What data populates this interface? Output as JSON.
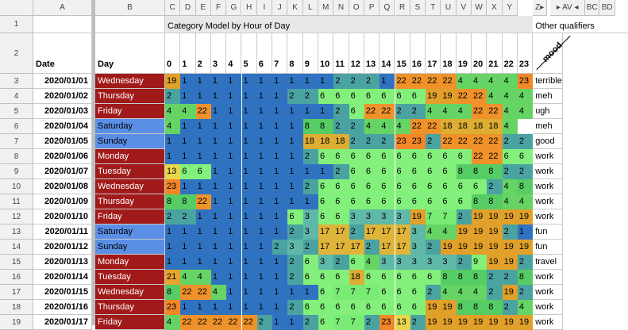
{
  "column_letters": [
    "A",
    "B",
    "C",
    "D",
    "E",
    "F",
    "G",
    "H",
    "I",
    "J",
    "K",
    "L",
    "M",
    "N",
    "O",
    "P",
    "Q",
    "R",
    "S",
    "T",
    "U",
    "V",
    "W",
    "X",
    "Y",
    "Z▸",
    "▸ AV ◂",
    "BC",
    "BD"
  ],
  "row1": {
    "row_number": "1",
    "title": "Category Model by Hour of Day",
    "other": "Other qualifiers"
  },
  "row2": {
    "row_number": "2",
    "date_header": "Date",
    "day_header": "Day",
    "hours": [
      "0",
      "1",
      "2",
      "3",
      "4",
      "5",
      "6",
      "7",
      "8",
      "9",
      "10",
      "11",
      "12",
      "13",
      "14",
      "15",
      "16",
      "17",
      "18",
      "19",
      "20",
      "21",
      "22",
      "23"
    ],
    "mood_header": "mood"
  },
  "colors": {
    "1": "#2f73c0",
    "2": "#4aa3a1",
    "3": "#5fb8a8",
    "4": "#66d464",
    "6": "#82f07a",
    "7": "#7aec76",
    "8": "#56cc64",
    "13": "#ead64c",
    "17": "#dfb43a",
    "18": "#dcae34",
    "19": "#e0a02a",
    "21": "#e6a52c",
    "22": "#ef922a",
    "23": "#f28728",
    "weekday": "#a11a1a",
    "weekend": "#5b8fe6"
  },
  "rows": [
    {
      "row": "3",
      "date": "2020/01/01",
      "day": "Wednesday",
      "weekend": false,
      "hours": [
        "19",
        "1",
        "1",
        "1",
        "1",
        "1",
        "1",
        "1",
        "1",
        "1",
        "1",
        "2",
        "2",
        "2",
        "1",
        "22",
        "22",
        "22",
        "22",
        "4",
        "4",
        "4",
        "4",
        "23"
      ],
      "mood": "terrible"
    },
    {
      "row": "4",
      "date": "2020/01/02",
      "day": "Thursday",
      "weekend": false,
      "hours": [
        "2",
        "1",
        "1",
        "1",
        "1",
        "1",
        "1",
        "1",
        "2",
        "2",
        "6",
        "6",
        "6",
        "6",
        "6",
        "6",
        "6",
        "19",
        "19",
        "22",
        "22",
        "4",
        "4",
        "4"
      ],
      "mood": "meh"
    },
    {
      "row": "5",
      "date": "2020/01/03",
      "day": "Friday",
      "weekend": false,
      "hours": [
        "4",
        "4",
        "22",
        "1",
        "1",
        "1",
        "1",
        "1",
        "1",
        "1",
        "1",
        "2",
        "6",
        "22",
        "22",
        "2",
        "2",
        "4",
        "4",
        "4",
        "22",
        "22",
        "4",
        "4"
      ],
      "mood": "ugh"
    },
    {
      "row": "6",
      "date": "2020/01/04",
      "day": "Saturday",
      "weekend": true,
      "hours": [
        "4",
        "1",
        "1",
        "1",
        "1",
        "1",
        "1",
        "1",
        "1",
        "8",
        "8",
        "2",
        "2",
        "4",
        "4",
        "4",
        "22",
        "22",
        "18",
        "18",
        "18",
        "18",
        "4",
        ""
      ],
      "mood": "meh"
    },
    {
      "row": "7",
      "date": "2020/01/05",
      "day": "Sunday",
      "weekend": true,
      "hours": [
        "1",
        "1",
        "1",
        "1",
        "1",
        "1",
        "1",
        "1",
        "1",
        "18",
        "18",
        "18",
        "2",
        "2",
        "2",
        "23",
        "23",
        "2",
        "22",
        "22",
        "22",
        "22",
        "2",
        "2"
      ],
      "mood": "good"
    },
    {
      "row": "8",
      "date": "2020/01/06",
      "day": "Monday",
      "weekend": false,
      "hours": [
        "1",
        "1",
        "1",
        "1",
        "1",
        "1",
        "1",
        "1",
        "1",
        "2",
        "6",
        "6",
        "6",
        "6",
        "6",
        "6",
        "6",
        "6",
        "6",
        "6",
        "22",
        "22",
        "6",
        "6"
      ],
      "mood": "work"
    },
    {
      "row": "9",
      "date": "2020/01/07",
      "day": "Tuesday",
      "weekend": false,
      "hours": [
        "13",
        "6",
        "6",
        "1",
        "1",
        "1",
        "1",
        "1",
        "1",
        "1",
        "1",
        "2",
        "6",
        "6",
        "6",
        "6",
        "6",
        "6",
        "6",
        "8",
        "8",
        "8",
        "2",
        "2"
      ],
      "mood": "work"
    },
    {
      "row": "10",
      "date": "2020/01/08",
      "day": "Wednesday",
      "weekend": false,
      "hours": [
        "23",
        "1",
        "1",
        "1",
        "1",
        "1",
        "1",
        "1",
        "1",
        "2",
        "6",
        "6",
        "6",
        "6",
        "6",
        "6",
        "6",
        "6",
        "6",
        "6",
        "6",
        "2",
        "4",
        "8"
      ],
      "mood": "work"
    },
    {
      "row": "11",
      "date": "2020/01/09",
      "day": "Thursday",
      "weekend": false,
      "hours": [
        "8",
        "8",
        "22",
        "1",
        "1",
        "1",
        "1",
        "1",
        "1",
        "1",
        "6",
        "6",
        "6",
        "6",
        "6",
        "6",
        "6",
        "6",
        "6",
        "6",
        "8",
        "8",
        "4",
        "4"
      ],
      "mood": "work"
    },
    {
      "row": "12",
      "date": "2020/01/10",
      "day": "Friday",
      "weekend": false,
      "hours": [
        "2",
        "2",
        "1",
        "1",
        "1",
        "1",
        "1",
        "1",
        "6",
        "3",
        "6",
        "6",
        "3",
        "3",
        "3",
        "3",
        "19",
        "7",
        "7",
        "2",
        "19",
        "19",
        "19",
        "19"
      ],
      "mood": "work"
    },
    {
      "row": "13",
      "date": "2020/01/11",
      "day": "Saturday",
      "weekend": true,
      "hours": [
        "1",
        "1",
        "1",
        "1",
        "1",
        "1",
        "1",
        "1",
        "2",
        "3",
        "17",
        "17",
        "2",
        "17",
        "17",
        "17",
        "3",
        "4",
        "4",
        "19",
        "19",
        "19",
        "2",
        "1"
      ],
      "mood": "fun"
    },
    {
      "row": "14",
      "date": "2020/01/12",
      "day": "Sunday",
      "weekend": true,
      "hours": [
        "1",
        "1",
        "1",
        "1",
        "1",
        "1",
        "1",
        "2",
        "3",
        "2",
        "17",
        "17",
        "17",
        "2",
        "17",
        "17",
        "3",
        "2",
        "19",
        "19",
        "19",
        "19",
        "19",
        "19"
      ],
      "mood": "fun"
    },
    {
      "row": "15",
      "date": "2020/01/13",
      "day": "Monday",
      "weekend": false,
      "hours": [
        "1",
        "1",
        "1",
        "1",
        "1",
        "1",
        "1",
        "1",
        "2",
        "6",
        "3",
        "2",
        "6",
        "4",
        "3",
        "3",
        "3",
        "3",
        "3",
        "2",
        "9",
        "19",
        "19",
        "2"
      ],
      "mood": "travel"
    },
    {
      "row": "16",
      "date": "2020/01/14",
      "day": "Tuesday",
      "weekend": false,
      "hours": [
        "21",
        "4",
        "4",
        "1",
        "1",
        "1",
        "1",
        "1",
        "2",
        "6",
        "6",
        "6",
        "18",
        "6",
        "6",
        "6",
        "6",
        "6",
        "8",
        "8",
        "8",
        "2",
        "2",
        "8"
      ],
      "mood": "work"
    },
    {
      "row": "17",
      "date": "2020/01/15",
      "day": "Wednesday",
      "weekend": false,
      "hours": [
        "8",
        "22",
        "22",
        "4",
        "1",
        "1",
        "1",
        "1",
        "1",
        "1",
        "6",
        "7",
        "7",
        "7",
        "6",
        "6",
        "6",
        "2",
        "4",
        "4",
        "4",
        "2",
        "19",
        "2"
      ],
      "mood": "work"
    },
    {
      "row": "18",
      "date": "2020/01/16",
      "day": "Thursday",
      "weekend": false,
      "hours": [
        "23",
        "1",
        "1",
        "1",
        "1",
        "1",
        "1",
        "1",
        "2",
        "6",
        "6",
        "6",
        "6",
        "6",
        "6",
        "6",
        "6",
        "19",
        "19",
        "8",
        "8",
        "8",
        "2",
        "4"
      ],
      "mood": "work"
    },
    {
      "row": "19",
      "date": "2020/01/17",
      "day": "Friday",
      "weekend": false,
      "hours": [
        "4",
        "22",
        "22",
        "22",
        "22",
        "22",
        "2",
        "1",
        "1",
        "2",
        "6",
        "7",
        "7",
        "2",
        "23",
        "13",
        "2",
        "19",
        "19",
        "19",
        "19",
        "19",
        "19",
        "19"
      ],
      "mood": "work"
    }
  ]
}
